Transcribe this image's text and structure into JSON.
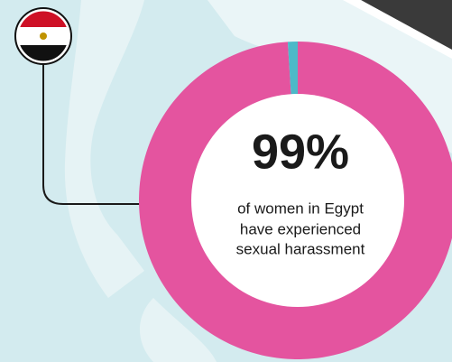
{
  "chart_data": {
    "type": "donut",
    "values": [
      99,
      1
    ],
    "value_labels": [
      "99%",
      null
    ],
    "colors": [
      "#e4549f",
      "#4cb9c8"
    ],
    "caption": [
      "of women in Egypt",
      "have experienced",
      "sexual harassment"
    ]
  }
}
